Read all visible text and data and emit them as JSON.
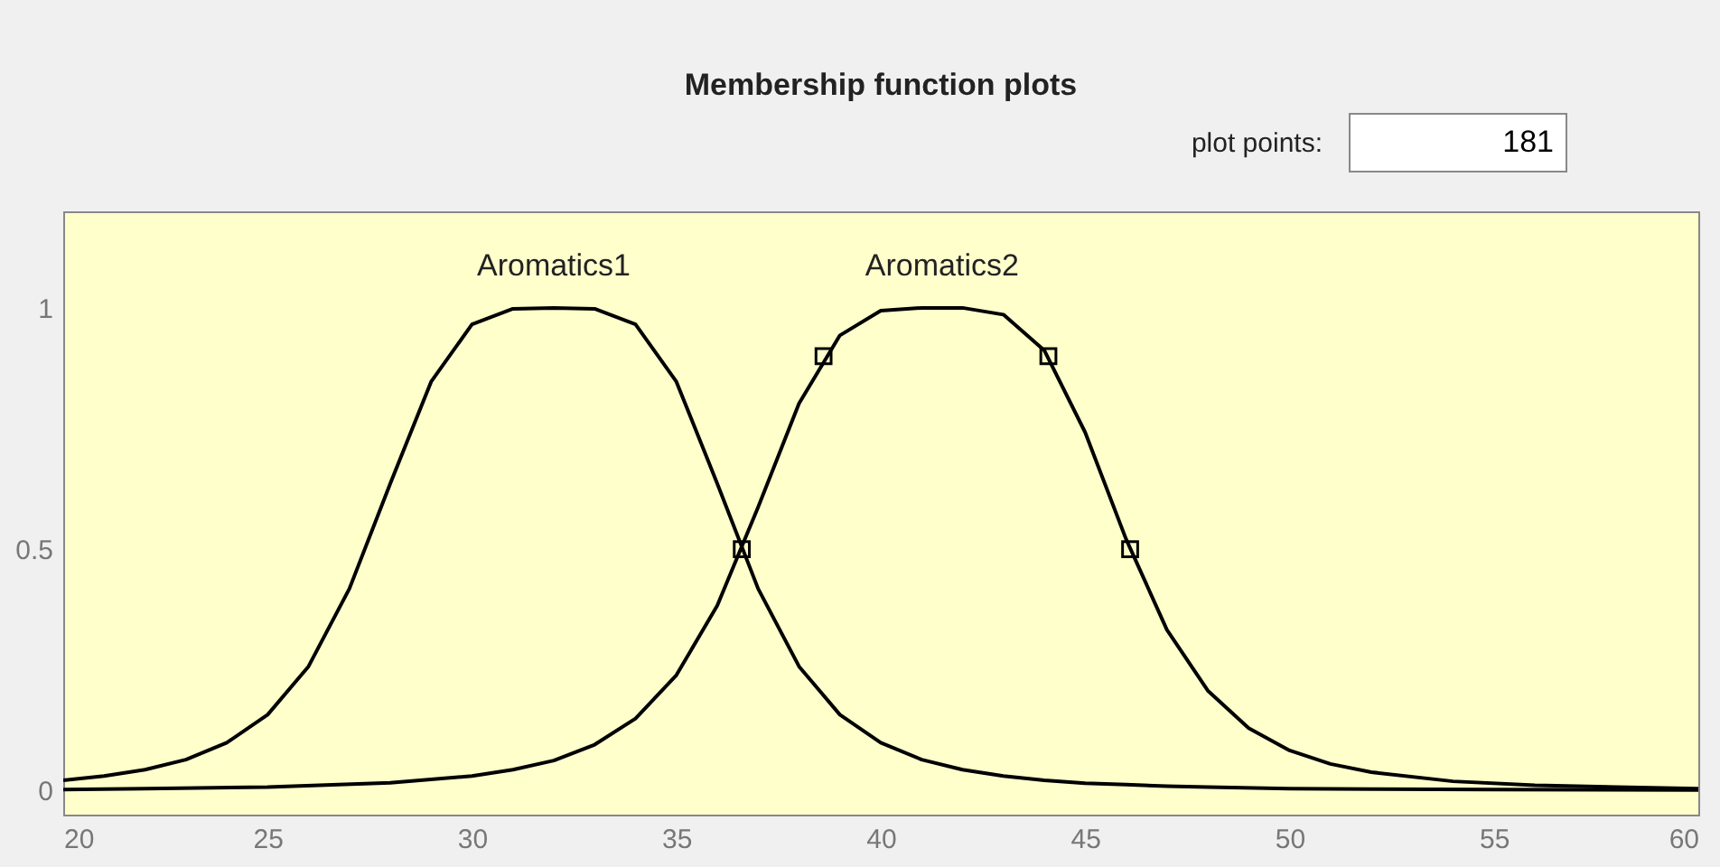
{
  "chart_data": {
    "type": "line",
    "title": "Membership function plots",
    "xlim": [
      20,
      60
    ],
    "xticks": [
      20,
      25,
      30,
      35,
      40,
      45,
      50,
      55,
      60
    ],
    "ylim": [
      -0.05,
      1.2
    ],
    "yticks": [
      0,
      0.5,
      1
    ],
    "grid": false,
    "legend": false,
    "marker": "none",
    "line_style": "solid",
    "series": [
      {
        "name": "Aromatics1",
        "color": "#000000",
        "x": [
          20,
          21,
          22,
          23,
          24,
          25,
          26,
          27,
          28,
          29,
          30,
          31,
          32,
          33,
          34,
          35,
          36,
          37,
          38,
          39,
          40,
          41,
          42,
          43,
          44,
          45,
          46,
          47,
          48,
          50,
          52,
          55,
          60
        ],
        "values": [
          0.021,
          0.03,
          0.043,
          0.064,
          0.099,
          0.157,
          0.257,
          0.418,
          0.636,
          0.847,
          0.966,
          0.998,
          1,
          0.998,
          0.966,
          0.847,
          0.636,
          0.418,
          0.257,
          0.157,
          0.099,
          0.064,
          0.043,
          0.03,
          0.021,
          0.015,
          0.012,
          0.009,
          0.007,
          0.004,
          0.003,
          0.002,
          0.001
        ]
      },
      {
        "name": "Aromatics2",
        "color": "#000000",
        "x": [
          20,
          22,
          25,
          28,
          30,
          31,
          32,
          33,
          34,
          35,
          36,
          37,
          38,
          39,
          40,
          41,
          42,
          43,
          44,
          45,
          46,
          47,
          48,
          49,
          50,
          51,
          52,
          54,
          56,
          58,
          60
        ],
        "values": [
          0.002,
          0.004,
          0.007,
          0.016,
          0.03,
          0.043,
          0.062,
          0.095,
          0.149,
          0.239,
          0.383,
          0.587,
          0.802,
          0.943,
          0.994,
          1,
          1,
          0.986,
          0.912,
          0.742,
          0.521,
          0.333,
          0.207,
          0.129,
          0.083,
          0.055,
          0.038,
          0.019,
          0.011,
          0.007,
          0.004
        ]
      },
      {
        "type": "scatter",
        "marker": "square",
        "color": "#000000",
        "x": [
          36.6,
          38.6,
          44.1,
          46.1
        ],
        "values": [
          0.5,
          0.9,
          0.9,
          0.5
        ]
      }
    ],
    "annotations": [
      "plot points:",
      "181"
    ]
  }
}
